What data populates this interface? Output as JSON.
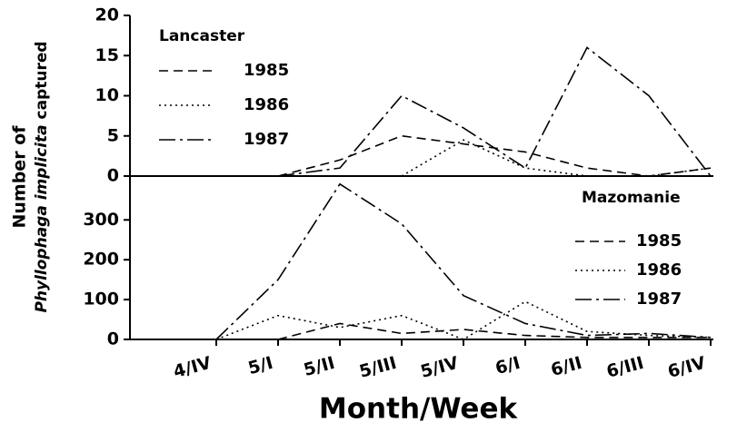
{
  "chart_data": [
    {
      "type": "line",
      "title": "Lancaster",
      "ylabel": [
        "Number of",
        "Phyllophaga implicita",
        "captured"
      ],
      "ylim": [
        0,
        20
      ],
      "yticks": [
        0,
        5,
        10,
        15,
        20
      ],
      "legend": "upper left",
      "series": [
        {
          "name": "1985",
          "color": "#000000",
          "linestyle": "dashed",
          "values": [
            null,
            0,
            2,
            5,
            4,
            3,
            1,
            0,
            1
          ]
        },
        {
          "name": "1986",
          "color": "#000000",
          "linestyle": "dotted",
          "values": [
            null,
            null,
            null,
            0,
            4.5,
            1,
            0,
            0,
            1
          ]
        },
        {
          "name": "1987",
          "color": "#000000",
          "linestyle": "dashdot",
          "values": [
            null,
            0,
            1,
            10,
            6,
            1,
            16,
            10,
            0
          ]
        }
      ]
    },
    {
      "type": "line",
      "title": "Mazomanie",
      "xlabel": "Month/Week",
      "categories": [
        "4/IV",
        "5/I",
        "5/II",
        "5/III",
        "5/IV",
        "6/I",
        "6/II",
        "6/III",
        "6/IV"
      ],
      "ylim": [
        0,
        410
      ],
      "yticks": [
        0,
        100,
        200,
        300
      ],
      "legend": "upper right",
      "series": [
        {
          "name": "1985",
          "color": "#000000",
          "linestyle": "dashed",
          "values": [
            null,
            0,
            40,
            15,
            25,
            10,
            5,
            5,
            5
          ]
        },
        {
          "name": "1986",
          "color": "#000000",
          "linestyle": "dotted",
          "values": [
            0,
            60,
            30,
            60,
            0,
            95,
            20,
            10,
            5
          ]
        },
        {
          "name": "1987",
          "color": "#000000",
          "linestyle": "dashdot",
          "values": [
            0,
            150,
            390,
            290,
            110,
            40,
            10,
            15,
            5
          ]
        }
      ]
    }
  ]
}
